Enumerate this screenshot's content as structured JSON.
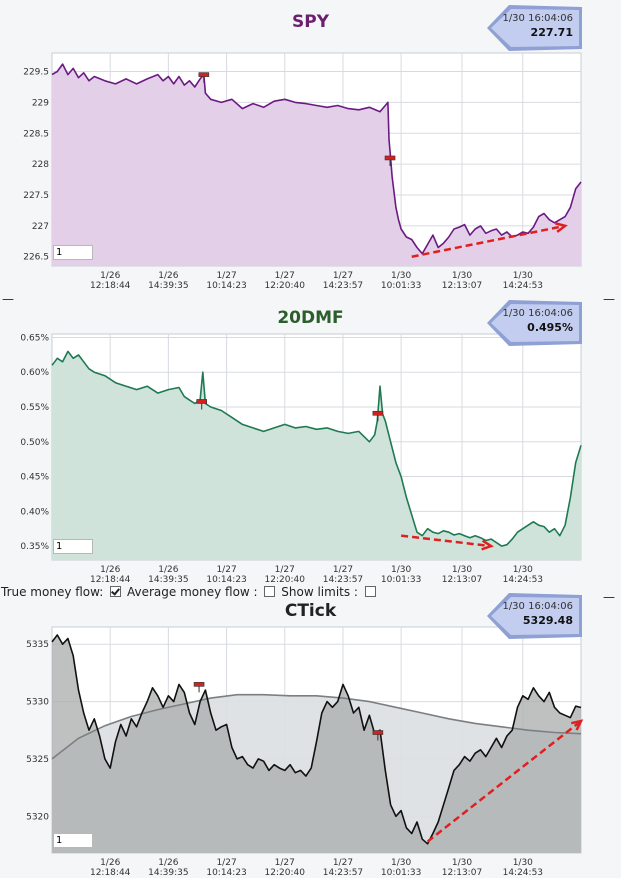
{
  "options": {
    "true_money_flow_label": "True money flow:",
    "true_money_flow_checked": true,
    "average_money_flow_label": "Average money flow :",
    "average_money_flow_checked": false,
    "show_limits_label": "Show limits :",
    "show_limits_checked": false
  },
  "panel_dash": "—",
  "chart_data": [
    {
      "type": "line",
      "title": "SPY",
      "title_color": "#6b1f6e",
      "line_color": "#6c1a83",
      "fill_color": "#e3d0e8",
      "quote": {
        "time": "1/30 16:04:06",
        "value": "227.71"
      },
      "input_value": "1",
      "ylim": [
        226.35,
        229.8
      ],
      "yticks": [
        {
          "value": 226.5,
          "label": "226.5"
        },
        {
          "value": 227,
          "label": "227"
        },
        {
          "value": 227.5,
          "label": "227.5"
        },
        {
          "value": 228,
          "label": "228"
        },
        {
          "value": 228.5,
          "label": "228.5"
        },
        {
          "value": 229,
          "label": "229"
        },
        {
          "value": 229.5,
          "label": "229.5"
        }
      ],
      "xlim": [
        0,
        100
      ],
      "xticks": [
        {
          "value": 11,
          "date": "1/26",
          "time": "12:18:44"
        },
        {
          "value": 22,
          "date": "1/26",
          "time": "14:39:35"
        },
        {
          "value": 33,
          "date": "1/27",
          "time": "10:14:23"
        },
        {
          "value": 44,
          "date": "1/27",
          "time": "12:20:40"
        },
        {
          "value": 55,
          "date": "1/27",
          "time": "14:23:57"
        },
        {
          "value": 66,
          "date": "1/30",
          "time": "10:01:33"
        },
        {
          "value": 77.5,
          "date": "1/30",
          "time": "12:13:07"
        },
        {
          "value": 89,
          "date": "1/30",
          "time": "14:24:53"
        }
      ],
      "series": [
        {
          "x": [
            0,
            1,
            2,
            3,
            4,
            5,
            6,
            7,
            8,
            10,
            12,
            14,
            16,
            18,
            20,
            21,
            22,
            23,
            24,
            25,
            26,
            27,
            28,
            28.7,
            29,
            30,
            32,
            34,
            36,
            38,
            40,
            42,
            44,
            46,
            48,
            50,
            52,
            54,
            56,
            58,
            60,
            62,
            63,
            63.5,
            63.7,
            64,
            64.3,
            65,
            65.5,
            66,
            67,
            68,
            69,
            70,
            71,
            72,
            73,
            74,
            75,
            76,
            77,
            78,
            79,
            80,
            81,
            82,
            83,
            84,
            85,
            86,
            87,
            88,
            89,
            90,
            91,
            92,
            93,
            94,
            95,
            96,
            97,
            98,
            99,
            100
          ],
          "y": [
            229.45,
            229.5,
            229.62,
            229.45,
            229.55,
            229.4,
            229.48,
            229.35,
            229.42,
            229.35,
            229.3,
            229.38,
            229.3,
            229.38,
            229.45,
            229.35,
            229.42,
            229.3,
            229.42,
            229.28,
            229.35,
            229.25,
            229.38,
            229.45,
            229.15,
            229.05,
            229.0,
            229.05,
            228.9,
            228.98,
            228.92,
            229.02,
            229.05,
            229.0,
            228.98,
            228.95,
            228.92,
            228.95,
            228.9,
            228.88,
            228.92,
            228.85,
            228.95,
            229.0,
            228.4,
            228.1,
            227.8,
            227.3,
            227.1,
            226.95,
            226.82,
            226.78,
            226.65,
            226.55,
            226.7,
            226.85,
            226.65,
            226.72,
            226.82,
            226.95,
            226.98,
            227.02,
            226.85,
            226.95,
            227.0,
            226.88,
            226.92,
            226.95,
            226.85,
            226.9,
            226.82,
            226.85,
            226.9,
            226.88,
            226.98,
            227.15,
            227.2,
            227.1,
            227.05,
            227.1,
            227.15,
            227.3,
            227.6,
            227.71
          ]
        }
      ],
      "markers": [
        {
          "x": 28.7,
          "y": 229.45
        },
        {
          "x": 63.9,
          "y": 228.1
        }
      ],
      "trend_arrow": {
        "from": [
          68,
          226.5
        ],
        "to": [
          97,
          227.0
        ]
      }
    },
    {
      "type": "line",
      "title": "20DMF",
      "title_color": "#2c5e2c",
      "line_color": "#1e7a52",
      "fill_color": "#cfe3da",
      "quote": {
        "time": "1/30 16:04:06",
        "value": "0.495%"
      },
      "input_value": "1",
      "ylim": [
        0.33,
        0.655
      ],
      "yticks": [
        {
          "value": 0.35,
          "label": "0.35%"
        },
        {
          "value": 0.4,
          "label": "0.40%"
        },
        {
          "value": 0.45,
          "label": "0.45%"
        },
        {
          "value": 0.5,
          "label": "0.50%"
        },
        {
          "value": 0.55,
          "label": "0.55%"
        },
        {
          "value": 0.6,
          "label": "0.60%"
        },
        {
          "value": 0.65,
          "label": "0.65%"
        }
      ],
      "xlim": [
        0,
        100
      ],
      "xticks": [
        {
          "value": 11,
          "date": "1/26",
          "time": "12:18:44"
        },
        {
          "value": 22,
          "date": "1/26",
          "time": "14:39:35"
        },
        {
          "value": 33,
          "date": "1/27",
          "time": "10:14:23"
        },
        {
          "value": 44,
          "date": "1/27",
          "time": "12:20:40"
        },
        {
          "value": 55,
          "date": "1/27",
          "time": "14:23:57"
        },
        {
          "value": 66,
          "date": "1/30",
          "time": "10:01:33"
        },
        {
          "value": 77.5,
          "date": "1/30",
          "time": "12:13:07"
        },
        {
          "value": 89,
          "date": "1/30",
          "time": "14:24:53"
        }
      ],
      "series": [
        {
          "x": [
            0,
            1,
            2,
            3,
            4,
            5,
            6,
            7,
            8,
            10,
            12,
            14,
            16,
            18,
            20,
            22,
            24,
            25,
            26,
            27,
            28,
            28.5,
            29,
            30,
            32,
            34,
            36,
            38,
            40,
            42,
            44,
            46,
            48,
            50,
            52,
            54,
            56,
            58,
            60,
            61,
            61.5,
            62,
            62.5,
            63,
            64,
            65,
            66,
            67,
            68,
            69,
            70,
            71,
            72,
            73,
            74,
            75,
            76,
            77,
            78,
            79,
            80,
            81,
            82,
            83,
            84,
            85,
            86,
            87,
            88,
            89,
            90,
            91,
            92,
            93,
            94,
            95,
            96,
            97,
            98,
            99,
            100
          ],
          "y": [
            0.61,
            0.62,
            0.615,
            0.63,
            0.62,
            0.625,
            0.615,
            0.605,
            0.6,
            0.595,
            0.585,
            0.58,
            0.575,
            0.58,
            0.57,
            0.575,
            0.578,
            0.565,
            0.56,
            0.555,
            0.56,
            0.6,
            0.555,
            0.55,
            0.545,
            0.535,
            0.525,
            0.52,
            0.515,
            0.52,
            0.525,
            0.52,
            0.522,
            0.518,
            0.52,
            0.515,
            0.512,
            0.515,
            0.5,
            0.51,
            0.53,
            0.58,
            0.54,
            0.53,
            0.5,
            0.47,
            0.45,
            0.42,
            0.395,
            0.37,
            0.365,
            0.375,
            0.37,
            0.368,
            0.372,
            0.37,
            0.366,
            0.368,
            0.365,
            0.362,
            0.365,
            0.362,
            0.358,
            0.36,
            0.355,
            0.35,
            0.352,
            0.36,
            0.37,
            0.375,
            0.38,
            0.385,
            0.38,
            0.378,
            0.37,
            0.375,
            0.365,
            0.38,
            0.42,
            0.47,
            0.495
          ]
        }
      ],
      "markers": [
        {
          "x": 28.3,
          "y": 0.558
        },
        {
          "x": 61.6,
          "y": 0.541
        }
      ],
      "trend_arrow": {
        "from": [
          66,
          0.365
        ],
        "to": [
          83,
          0.35
        ]
      }
    },
    {
      "type": "line",
      "title": "CTick",
      "title_color": "#222222",
      "line_color": "#111111",
      "fill_color": "#a9acac",
      "quote": {
        "time": "1/30 16:04:06",
        "value": "5329.48"
      },
      "input_value": "1",
      "ylim": [
        5316.8,
        5336.5
      ],
      "yticks": [
        {
          "value": 5320,
          "label": "5320"
        },
        {
          "value": 5325,
          "label": "5325"
        },
        {
          "value": 5330,
          "label": "5330"
        },
        {
          "value": 5335,
          "label": "5335"
        }
      ],
      "xlim": [
        0,
        100
      ],
      "xticks": [
        {
          "value": 11,
          "date": "1/26",
          "time": "12:18:44"
        },
        {
          "value": 22,
          "date": "1/26",
          "time": "14:39:35"
        },
        {
          "value": 33,
          "date": "1/27",
          "time": "10:14:23"
        },
        {
          "value": 44,
          "date": "1/27",
          "time": "12:20:40"
        },
        {
          "value": 55,
          "date": "1/27",
          "time": "14:23:57"
        },
        {
          "value": 66,
          "date": "1/30",
          "time": "10:01:33"
        },
        {
          "value": 77.5,
          "date": "1/30",
          "time": "12:13:07"
        },
        {
          "value": 89,
          "date": "1/30",
          "time": "14:24:53"
        }
      ],
      "average": {
        "x": [
          0,
          5,
          10,
          15,
          20,
          25,
          30,
          35,
          40,
          45,
          50,
          55,
          60,
          65,
          70,
          75,
          80,
          85,
          90,
          95,
          100
        ],
        "y": [
          5325.0,
          5326.8,
          5327.9,
          5328.7,
          5329.3,
          5329.8,
          5330.3,
          5330.6,
          5330.6,
          5330.5,
          5330.5,
          5330.3,
          5330.0,
          5329.5,
          5329.0,
          5328.5,
          5328.1,
          5327.8,
          5327.5,
          5327.3,
          5327.2
        ]
      },
      "series": [
        {
          "x": [
            0,
            1,
            2,
            3,
            4,
            5,
            6,
            7,
            8,
            9,
            10,
            11,
            12,
            13,
            14,
            15,
            16,
            17,
            18,
            19,
            20,
            21,
            22,
            23,
            24,
            25,
            26,
            27,
            28,
            29,
            30,
            31,
            32,
            33,
            34,
            35,
            36,
            37,
            38,
            39,
            40,
            41,
            42,
            43,
            44,
            45,
            46,
            47,
            48,
            49,
            50,
            51,
            52,
            53,
            54,
            55,
            56,
            57,
            58,
            59,
            60,
            61,
            62,
            63,
            64,
            65,
            66,
            67,
            68,
            69,
            70,
            71,
            72,
            73,
            74,
            75,
            76,
            77,
            78,
            79,
            80,
            81,
            82,
            83,
            84,
            85,
            86,
            87,
            88,
            89,
            90,
            91,
            92,
            93,
            94,
            95,
            96,
            97,
            98,
            99,
            100
          ],
          "y": [
            5335.2,
            5335.8,
            5335.0,
            5335.5,
            5334.0,
            5331.0,
            5329.0,
            5327.5,
            5328.5,
            5327.0,
            5325.0,
            5324.2,
            5326.5,
            5328.0,
            5327.0,
            5328.5,
            5327.8,
            5329.0,
            5330.0,
            5331.2,
            5330.5,
            5329.5,
            5330.5,
            5330.0,
            5331.5,
            5330.8,
            5329.0,
            5328.0,
            5330.0,
            5331.0,
            5329.0,
            5327.5,
            5327.8,
            5328.0,
            5326.0,
            5325.0,
            5325.2,
            5324.5,
            5324.2,
            5325.0,
            5324.8,
            5324.0,
            5324.5,
            5324.2,
            5324.0,
            5324.5,
            5323.8,
            5324.0,
            5323.5,
            5324.2,
            5326.5,
            5329.0,
            5330.0,
            5329.5,
            5330.0,
            5331.5,
            5330.5,
            5329.0,
            5329.5,
            5327.5,
            5328.8,
            5327.2,
            5327.5,
            5324.0,
            5321.0,
            5320.0,
            5320.5,
            5319.0,
            5318.5,
            5319.5,
            5318.0,
            5317.6,
            5318.5,
            5319.5,
            5321.0,
            5322.5,
            5324.0,
            5324.5,
            5325.2,
            5324.8,
            5325.5,
            5325.8,
            5325.2,
            5326.0,
            5326.8,
            5326.0,
            5327.0,
            5327.5,
            5329.5,
            5330.5,
            5330.2,
            5331.2,
            5330.5,
            5330.0,
            5330.8,
            5329.5,
            5329.0,
            5328.8,
            5328.6,
            5329.6,
            5329.48
          ]
        }
      ],
      "markers": [
        {
          "x": 27.8,
          "y": 5331.5
        },
        {
          "x": 61.6,
          "y": 5327.3
        }
      ],
      "trend_arrow": {
        "from": [
          71,
          5317.8
        ],
        "to": [
          100,
          5328.3
        ]
      }
    }
  ]
}
